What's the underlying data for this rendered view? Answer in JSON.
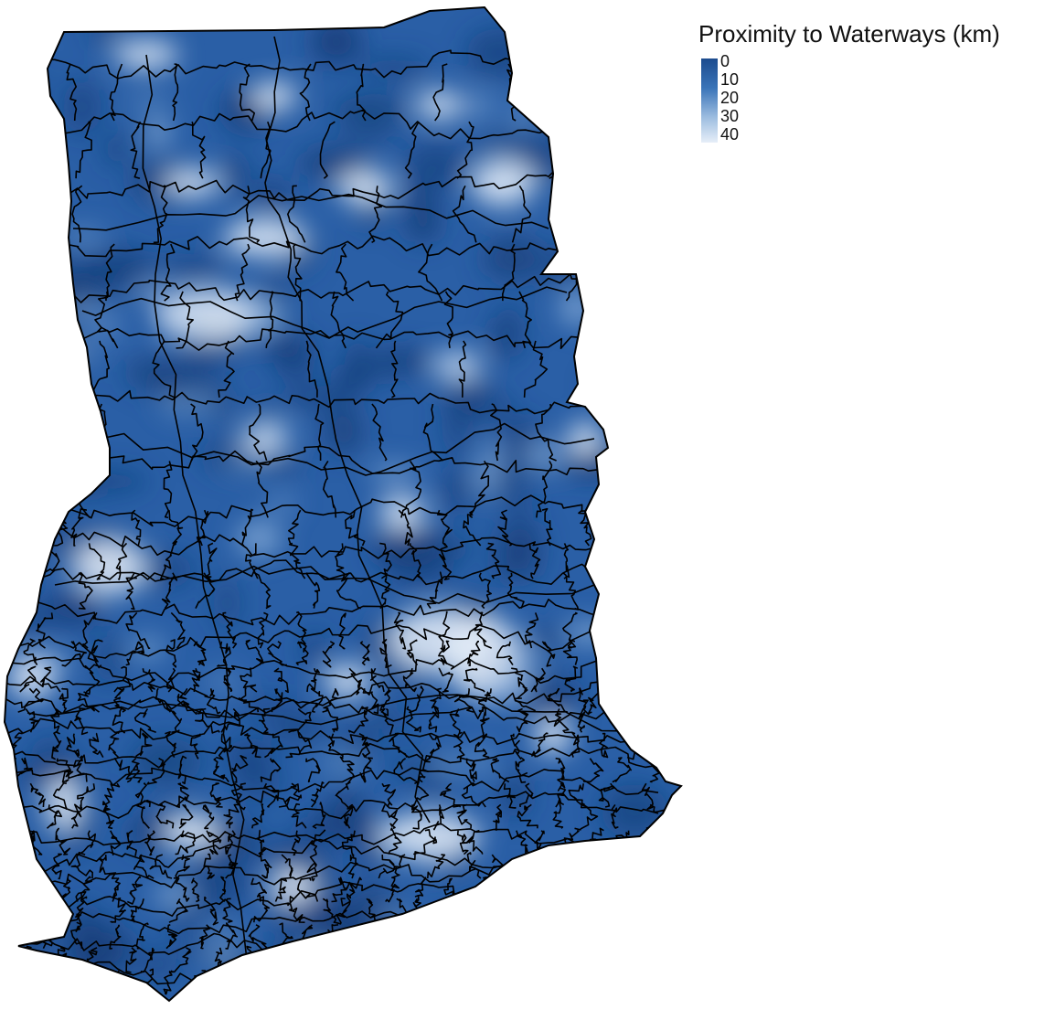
{
  "legend": {
    "title": "Proximity to Waterways (km)",
    "ticks": [
      "0",
      "10",
      "20",
      "30",
      "40"
    ],
    "color_low": "#1c4b8e",
    "color_high": "#e6eef8"
  },
  "map": {
    "fill_base": "#2a5fa6",
    "fill_dark": "#163f7a",
    "fill_light": "#e8f0fa",
    "boundary_color": "#000000"
  }
}
